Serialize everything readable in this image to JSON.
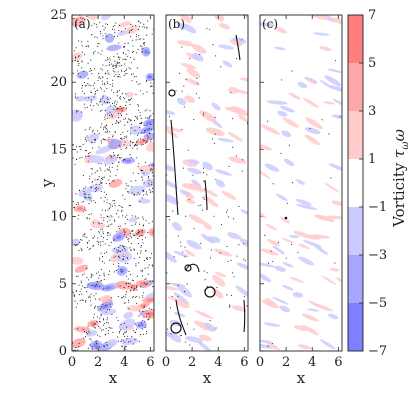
{
  "chart_data": {
    "type": "heatmap",
    "panels": [
      {
        "label": "(a)",
        "xlabel": "x",
        "xlim": [
          0,
          6.28
        ],
        "xticks": [
          "0",
          "2",
          "4",
          "6"
        ],
        "yticks": [
          "0",
          "5",
          "10",
          "15",
          "20",
          "25"
        ],
        "ylabel": "y",
        "ylim": [
          0,
          25
        ],
        "particles": "dense",
        "vorticity": "strong"
      },
      {
        "label": "(b)",
        "xlabel": "x",
        "xlim": [
          0,
          6.28
        ],
        "xticks": [
          "0",
          "2",
          "4",
          "6"
        ],
        "particles": "filaments",
        "vorticity": "moderate"
      },
      {
        "label": "(c)",
        "xlabel": "x",
        "xlim": [
          0,
          6.28
        ],
        "xticks": [
          "0",
          "2",
          "4",
          "6"
        ],
        "particles": "sparse",
        "vorticity": "weak"
      }
    ],
    "colorbar": {
      "label": "Vorticity τ_ω ω",
      "label_main": "Vorticity ",
      "label_tau": "τ",
      "label_sub": "ω",
      "label_omega": "ω",
      "range": [
        -7,
        7
      ],
      "levels": [
        -7,
        -5,
        -3,
        -1,
        1,
        3,
        5,
        7
      ],
      "tick_labels": [
        "7",
        "5",
        "3",
        "1",
        "−1",
        "−3",
        "−5",
        "−7"
      ],
      "colors": [
        "#7f7fff",
        "#a6a6ff",
        "#cbcbff",
        "#ffffff",
        "#ffcbcb",
        "#ffa6a6",
        "#ff7f7f"
      ]
    }
  }
}
